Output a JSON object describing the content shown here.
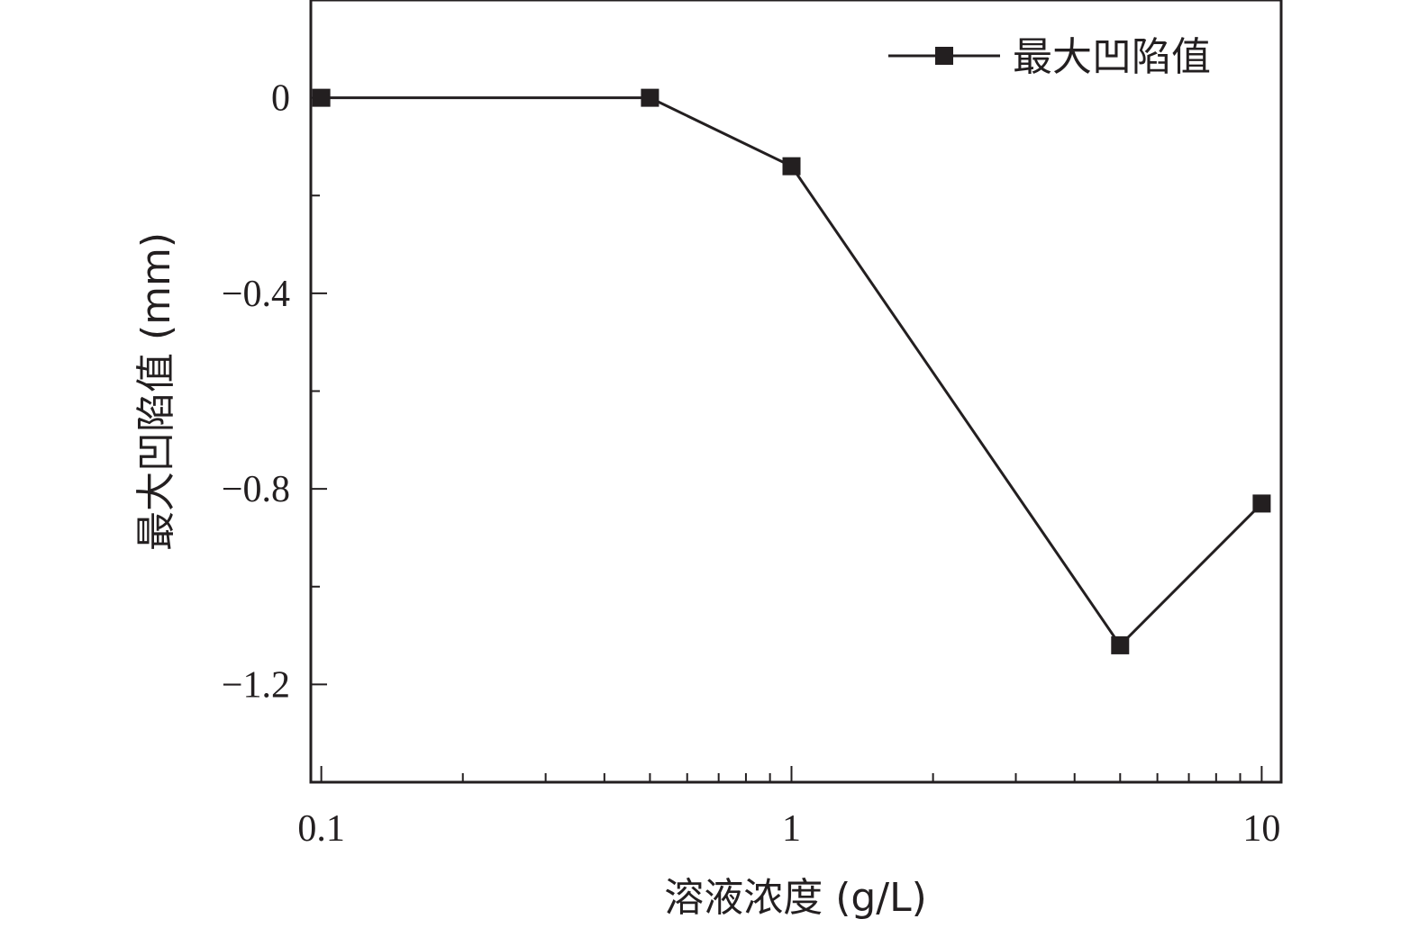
{
  "chart_data": {
    "type": "line",
    "x_scale": "log",
    "xlabel": "溶液浓度 (g/L)",
    "ylabel": "最大凹陷值 (mm)",
    "xlim": [
      0.095,
      11
    ],
    "ylim": [
      -1.4,
      0.2
    ],
    "x_ticks": [
      {
        "value": 0.1,
        "label": "0.1"
      },
      {
        "value": 1,
        "label": "1"
      },
      {
        "value": 10,
        "label": "10"
      }
    ],
    "y_ticks": [
      {
        "value": 0,
        "label": "0"
      },
      {
        "value": -0.4,
        "label": "−0.4"
      },
      {
        "value": -0.8,
        "label": "−0.8"
      },
      {
        "value": -1.2,
        "label": "−1.2"
      }
    ],
    "grid": false,
    "legend_position": "top-right",
    "series": [
      {
        "name": "最大凹陷值",
        "color": "#231f20",
        "marker": "square",
        "x": [
          0.1,
          0.5,
          1,
          5,
          10
        ],
        "y": [
          0,
          0,
          -0.14,
          -1.12,
          -0.83
        ]
      }
    ]
  }
}
